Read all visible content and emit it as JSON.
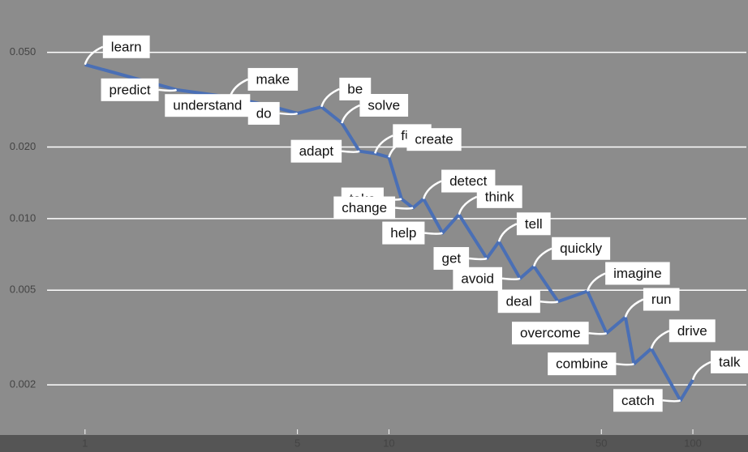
{
  "chart_data": {
    "type": "line",
    "x": [
      1,
      2,
      3,
      4,
      5,
      6,
      7,
      8,
      9,
      10,
      11,
      12,
      13,
      15,
      17,
      21,
      23,
      27,
      30,
      36,
      45,
      52,
      60,
      64,
      73,
      91,
      100
    ],
    "labels": [
      "learn",
      "predict",
      "make",
      "understand",
      "do",
      "be",
      "solve",
      "adapt",
      "find",
      "create",
      "take",
      "change",
      "detect",
      "help",
      "think",
      "get",
      "tell",
      "avoid",
      "quickly",
      "deal",
      "imagine",
      "overcome",
      "run",
      "combine",
      "drive",
      "catch",
      "talk"
    ],
    "series": [
      {
        "color": "#4a6fb5",
        "values": [
          0.0444,
          0.0348,
          0.0324,
          0.0299,
          0.0277,
          0.0295,
          0.0252,
          0.0192,
          0.0188,
          0.0181,
          0.0121,
          0.0111,
          0.0121,
          0.0087,
          0.0104,
          0.0068,
          0.008,
          0.0056,
          0.0063,
          0.00448,
          0.00495,
          0.0033,
          0.00385,
          0.00245,
          0.00284,
          0.00172,
          0.0021
        ]
      }
    ],
    "xlog": true,
    "ylog": true,
    "xlim": [
      0.75,
      150
    ],
    "ylim": [
      0.0013,
      0.083
    ],
    "xticks": [
      1,
      5,
      10,
      50,
      100
    ],
    "yticks": [
      {
        "value": 0.05,
        "label": "0.050"
      },
      {
        "value": 0.02,
        "label": "0.020"
      },
      {
        "value": 0.01,
        "label": "0.010"
      },
      0.005,
      0.002
    ],
    "grid": true
  }
}
